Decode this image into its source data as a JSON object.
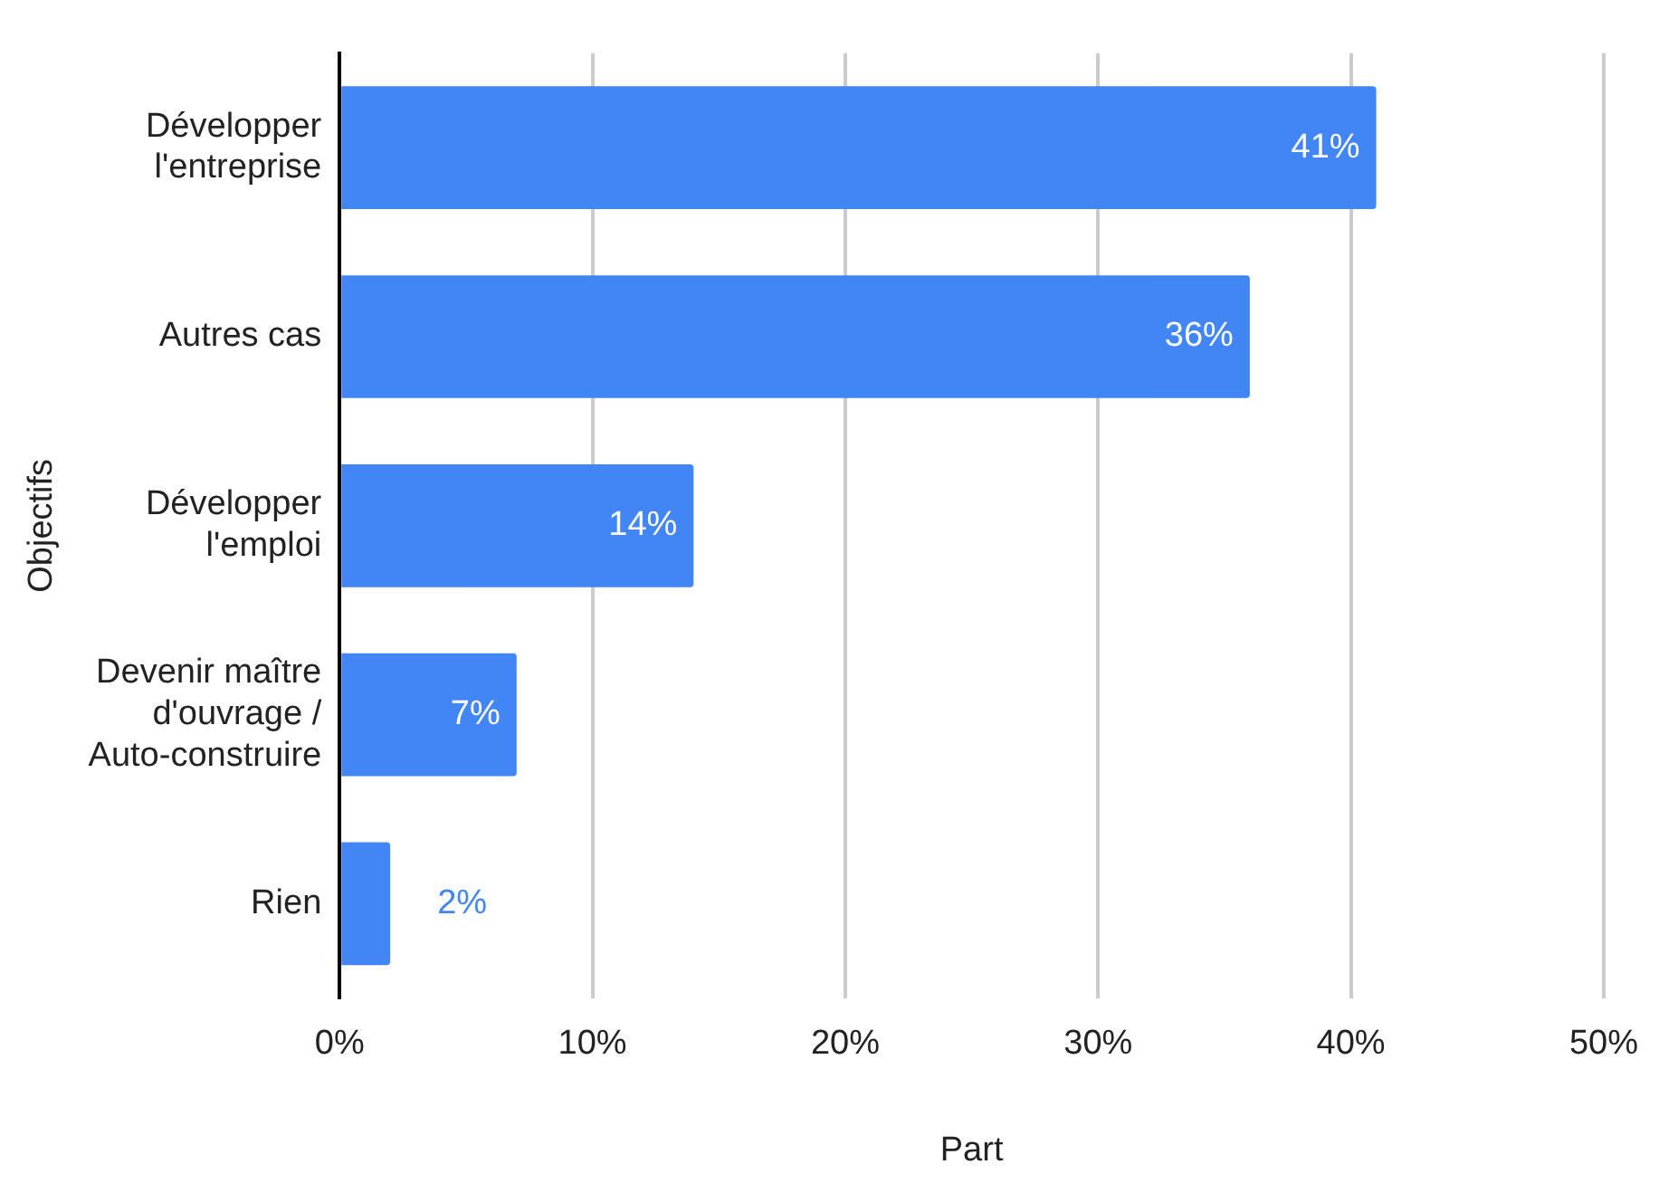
{
  "chart_data": {
    "type": "bar",
    "orientation": "horizontal",
    "categories": [
      "Développer l'entreprise",
      "Autres cas",
      "Développer l'emploi",
      "Devenir maître d'ouvrage / Auto-construire",
      "Rien"
    ],
    "values": [
      41,
      36,
      14,
      7,
      2
    ],
    "value_labels": [
      "41%",
      "36%",
      "14%",
      "7%",
      "2%"
    ],
    "color": "#4285f4",
    "xlabel": "Part",
    "ylabel": "Objectifs",
    "xlim": [
      0,
      50
    ],
    "xticks": [
      {
        "value": 0,
        "label": "0%"
      },
      {
        "value": 10,
        "label": "10%"
      },
      {
        "value": 20,
        "label": "20%"
      },
      {
        "value": 30,
        "label": "30%"
      },
      {
        "value": 40,
        "label": "40%"
      },
      {
        "value": 50,
        "label": "50%"
      }
    ],
    "grid": "x",
    "legend": false
  }
}
